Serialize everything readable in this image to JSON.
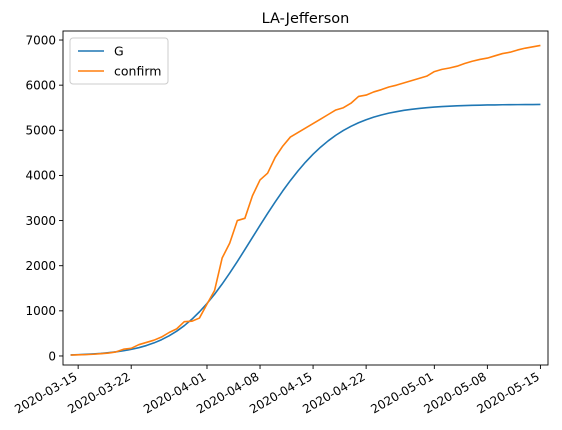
{
  "chart_data": {
    "type": "line",
    "title": "LA-Jefferson",
    "xlabel": "",
    "ylabel": "",
    "x_range": [
      "2020-03-13",
      "2020-05-16"
    ],
    "ylim": [
      -200,
      7200
    ],
    "grid": false,
    "legend_position": "top-left",
    "x_ticks": [
      "2020-03-15",
      "2020-03-22",
      "2020-04-01",
      "2020-04-08",
      "2020-04-15",
      "2020-04-22",
      "2020-05-01",
      "2020-05-08",
      "2020-05-15"
    ],
    "y_ticks": [
      0,
      1000,
      2000,
      3000,
      4000,
      5000,
      6000,
      7000
    ],
    "series": [
      {
        "name": "G",
        "color": "#1f77b4",
        "points": [
          [
            "2020-03-14",
            22
          ],
          [
            "2020-03-15",
            28
          ],
          [
            "2020-03-16",
            36
          ],
          [
            "2020-03-17",
            45
          ],
          [
            "2020-03-18",
            57
          ],
          [
            "2020-03-19",
            73
          ],
          [
            "2020-03-20",
            92
          ],
          [
            "2020-03-21",
            116
          ],
          [
            "2020-03-22",
            146
          ],
          [
            "2020-03-23",
            184
          ],
          [
            "2020-03-24",
            231
          ],
          [
            "2020-03-25",
            289
          ],
          [
            "2020-03-26",
            360
          ],
          [
            "2020-03-27",
            446
          ],
          [
            "2020-03-28",
            549
          ],
          [
            "2020-03-29",
            671
          ],
          [
            "2020-03-30",
            813
          ],
          [
            "2020-03-31",
            977
          ],
          [
            "2020-04-01",
            1162
          ],
          [
            "2020-04-02",
            1368
          ],
          [
            "2020-04-03",
            1594
          ],
          [
            "2020-04-04",
            1836
          ],
          [
            "2020-04-05",
            2092
          ],
          [
            "2020-04-06",
            2357
          ],
          [
            "2020-04-07",
            2626
          ],
          [
            "2020-04-08",
            2894
          ],
          [
            "2020-04-09",
            3158
          ],
          [
            "2020-04-10",
            3413
          ],
          [
            "2020-04-11",
            3657
          ],
          [
            "2020-04-12",
            3886
          ],
          [
            "2020-04-13",
            4099
          ],
          [
            "2020-04-14",
            4294
          ],
          [
            "2020-04-15",
            4470
          ],
          [
            "2020-04-16",
            4628
          ],
          [
            "2020-04-17",
            4767
          ],
          [
            "2020-04-18",
            4890
          ],
          [
            "2020-04-19",
            4996
          ],
          [
            "2020-04-20",
            5088
          ],
          [
            "2020-04-21",
            5167
          ],
          [
            "2020-04-22",
            5234
          ],
          [
            "2020-04-23",
            5291
          ],
          [
            "2020-04-24",
            5339
          ],
          [
            "2020-04-25",
            5380
          ],
          [
            "2020-04-26",
            5413
          ],
          [
            "2020-04-27",
            5442
          ],
          [
            "2020-04-28",
            5465
          ],
          [
            "2020-04-29",
            5485
          ],
          [
            "2020-04-30",
            5501
          ],
          [
            "2020-05-01",
            5515
          ],
          [
            "2020-05-02",
            5526
          ],
          [
            "2020-05-03",
            5535
          ],
          [
            "2020-05-04",
            5542
          ],
          [
            "2020-05-05",
            5548
          ],
          [
            "2020-05-06",
            5553
          ],
          [
            "2020-05-07",
            5557
          ],
          [
            "2020-05-08",
            5561
          ],
          [
            "2020-05-09",
            5563
          ],
          [
            "2020-05-10",
            5566
          ],
          [
            "2020-05-11",
            5567
          ],
          [
            "2020-05-12",
            5569
          ],
          [
            "2020-05-13",
            5570
          ],
          [
            "2020-05-14",
            5571
          ],
          [
            "2020-05-15",
            5572
          ]
        ]
      },
      {
        "name": "confirm",
        "color": "#ff7f0e",
        "points": [
          [
            "2020-03-14",
            20
          ],
          [
            "2020-03-15",
            25
          ],
          [
            "2020-03-16",
            30
          ],
          [
            "2020-03-17",
            38
          ],
          [
            "2020-03-18",
            50
          ],
          [
            "2020-03-19",
            65
          ],
          [
            "2020-03-20",
            90
          ],
          [
            "2020-03-21",
            150
          ],
          [
            "2020-03-22",
            170
          ],
          [
            "2020-03-23",
            250
          ],
          [
            "2020-03-24",
            300
          ],
          [
            "2020-03-25",
            350
          ],
          [
            "2020-03-26",
            420
          ],
          [
            "2020-03-27",
            520
          ],
          [
            "2020-03-28",
            600
          ],
          [
            "2020-03-29",
            760
          ],
          [
            "2020-03-30",
            770
          ],
          [
            "2020-03-31",
            840
          ],
          [
            "2020-04-01",
            1150
          ],
          [
            "2020-04-02",
            1450
          ],
          [
            "2020-04-03",
            2170
          ],
          [
            "2020-04-04",
            2500
          ],
          [
            "2020-04-05",
            3000
          ],
          [
            "2020-04-06",
            3050
          ],
          [
            "2020-04-07",
            3550
          ],
          [
            "2020-04-08",
            3900
          ],
          [
            "2020-04-09",
            4050
          ],
          [
            "2020-04-10",
            4400
          ],
          [
            "2020-04-11",
            4650
          ],
          [
            "2020-04-12",
            4850
          ],
          [
            "2020-04-13",
            4950
          ],
          [
            "2020-04-14",
            5050
          ],
          [
            "2020-04-15",
            5150
          ],
          [
            "2020-04-16",
            5250
          ],
          [
            "2020-04-17",
            5350
          ],
          [
            "2020-04-18",
            5450
          ],
          [
            "2020-04-19",
            5500
          ],
          [
            "2020-04-20",
            5600
          ],
          [
            "2020-04-21",
            5750
          ],
          [
            "2020-04-22",
            5780
          ],
          [
            "2020-04-23",
            5850
          ],
          [
            "2020-04-24",
            5900
          ],
          [
            "2020-04-25",
            5960
          ],
          [
            "2020-04-26",
            6000
          ],
          [
            "2020-04-27",
            6050
          ],
          [
            "2020-04-28",
            6100
          ],
          [
            "2020-04-29",
            6150
          ],
          [
            "2020-04-30",
            6200
          ],
          [
            "2020-05-01",
            6300
          ],
          [
            "2020-05-02",
            6350
          ],
          [
            "2020-05-03",
            6380
          ],
          [
            "2020-05-04",
            6420
          ],
          [
            "2020-05-05",
            6480
          ],
          [
            "2020-05-06",
            6530
          ],
          [
            "2020-05-07",
            6570
          ],
          [
            "2020-05-08",
            6600
          ],
          [
            "2020-05-09",
            6650
          ],
          [
            "2020-05-10",
            6700
          ],
          [
            "2020-05-11",
            6730
          ],
          [
            "2020-05-12",
            6780
          ],
          [
            "2020-05-13",
            6820
          ],
          [
            "2020-05-14",
            6850
          ],
          [
            "2020-05-15",
            6880
          ]
        ]
      }
    ]
  }
}
